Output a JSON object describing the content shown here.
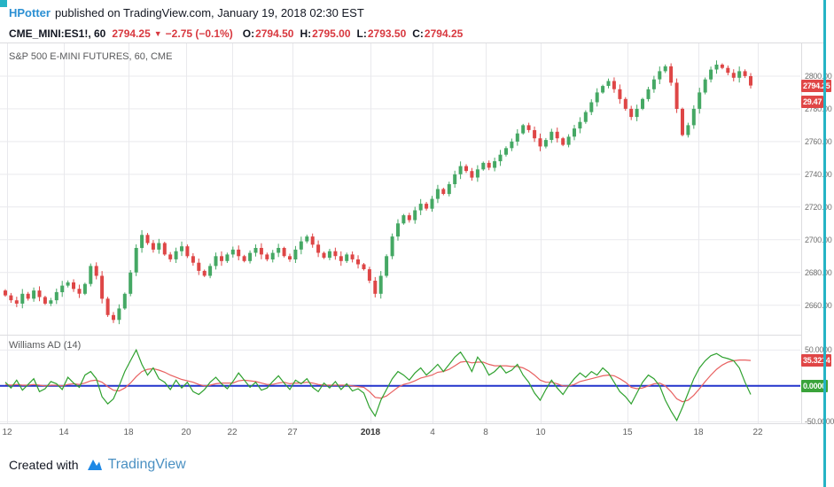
{
  "header": {
    "author": "HPotter",
    "published_text": "published on TradingView.com, January 19, 2018 02:30 EST"
  },
  "symbol_bar": {
    "symbol": "CME_MINI:ES1!, 60",
    "last": "2794.25",
    "direction": "▼",
    "change": "−2.75 (−0.1%)",
    "ohlc": [
      {
        "label": "O:",
        "value": "2794.50"
      },
      {
        "label": "H:",
        "value": "2795.00"
      },
      {
        "label": "L:",
        "value": "2793.50"
      },
      {
        "label": "C:",
        "value": "2794.25"
      }
    ]
  },
  "main_pane": {
    "title": "S&P 500 E-MINI FUTURES, 60, CME",
    "badges": [
      {
        "text": "2794.25",
        "value": 2794.25
      },
      {
        "text": "29.47",
        "value": 2784.3
      }
    ]
  },
  "indicator_pane": {
    "title": "Williams AD (14)",
    "badges": [
      {
        "text": "35.3214",
        "value": 35.3214,
        "color": "red"
      },
      {
        "text": "0.0000",
        "value": 0,
        "color": "green"
      }
    ]
  },
  "footer": {
    "created_with": "Created with",
    "brand": "TradingView"
  },
  "colors": {
    "accent_teal": "#25b3c5",
    "author_blue": "#2a8fd3",
    "text_dark": "#131722",
    "red": "#d8383f",
    "candle_up": "#45a864",
    "candle_down": "#de4646",
    "grid": "#e9e9ed",
    "axis_text": "#707070",
    "indicator_green": "#2fa12f",
    "indicator_red": "#e86060",
    "zero_line_blue": "#2233cc",
    "badge_red": "#e04646",
    "badge_green": "#3aa33a",
    "brand_blue": "#1e88e5",
    "brand_text": "#4a90c2"
  },
  "chart_data": {
    "type": "candlestick",
    "title": "S&P 500 E-MINI FUTURES, 60, CME",
    "symbol": "CME_MINI:ES1!",
    "interval_minutes": 60,
    "last_bar": {
      "open": 2794.5,
      "high": 2795.0,
      "low": 2793.5,
      "close": 2794.25,
      "change": -2.75,
      "change_pct": -0.1
    },
    "x_axis": {
      "labels": [
        {
          "text": "12",
          "x": 8
        },
        {
          "text": "14",
          "x": 72
        },
        {
          "text": "18",
          "x": 145
        },
        {
          "text": "20",
          "x": 210
        },
        {
          "text": "22",
          "x": 262
        },
        {
          "text": "27",
          "x": 330
        },
        {
          "text": "2018",
          "x": 418,
          "bold": true
        },
        {
          "text": "4",
          "x": 488
        },
        {
          "text": "8",
          "x": 548
        },
        {
          "text": "10",
          "x": 610
        },
        {
          "text": "15",
          "x": 708
        },
        {
          "text": "18",
          "x": 788
        },
        {
          "text": "22",
          "x": 855
        }
      ]
    },
    "price_axis": {
      "ylim": [
        2642,
        2820
      ],
      "ticks": [
        {
          "label": "2800.00",
          "value": 2800
        },
        {
          "label": "2780.00",
          "value": 2780
        },
        {
          "label": "2760.00",
          "value": 2760
        },
        {
          "label": "2740.00",
          "value": 2740
        },
        {
          "label": "2720.00",
          "value": 2720
        },
        {
          "label": "2700.00",
          "value": 2700
        },
        {
          "label": "2680.00",
          "value": 2680
        },
        {
          "label": "2660.00",
          "value": 2660
        }
      ]
    },
    "closes": [
      2666,
      2663,
      2661,
      2667,
      2664,
      2669,
      2665,
      2661,
      2663,
      2668,
      2672,
      2674,
      2670,
      2667,
      2673,
      2684,
      2678,
      2664,
      2654,
      2651,
      2658,
      2667,
      2680,
      2695,
      2703,
      2698,
      2694,
      2698,
      2691,
      2688,
      2693,
      2696,
      2690,
      2686,
      2681,
      2678,
      2684,
      2690,
      2687,
      2691,
      2694,
      2690,
      2687,
      2692,
      2695,
      2691,
      2688,
      2692,
      2695,
      2690,
      2688,
      2694,
      2699,
      2702,
      2697,
      2692,
      2689,
      2693,
      2690,
      2687,
      2691,
      2688,
      2685,
      2682,
      2675,
      2667,
      2678,
      2690,
      2702,
      2710,
      2715,
      2712,
      2718,
      2722,
      2719,
      2725,
      2731,
      2728,
      2734,
      2740,
      2745,
      2742,
      2738,
      2743,
      2747,
      2744,
      2748,
      2752,
      2756,
      2760,
      2765,
      2770,
      2767,
      2762,
      2757,
      2761,
      2766,
      2762,
      2758,
      2763,
      2768,
      2772,
      2778,
      2784,
      2790,
      2794,
      2797,
      2792,
      2786,
      2780,
      2775,
      2780,
      2786,
      2792,
      2798,
      2803,
      2806,
      2796,
      2780,
      2764,
      2770,
      2780,
      2790,
      2798,
      2804,
      2807,
      2805,
      2802,
      2799,
      2803,
      2800,
      2794.25
    ],
    "indicator": {
      "name": "Williams AD (14)",
      "ylim": [
        -52,
        70
      ],
      "zero_line": 0,
      "last_smoothing_value": 35.3214,
      "ticks": [
        {
          "label": "50.0000",
          "value": 50
        },
        {
          "label": "-50.0000",
          "value": -50
        }
      ],
      "green": [
        5,
        -3,
        8,
        -6,
        2,
        10,
        -8,
        -4,
        6,
        3,
        -5,
        12,
        4,
        -2,
        15,
        20,
        10,
        -15,
        -25,
        -18,
        0,
        20,
        35,
        50,
        30,
        15,
        25,
        10,
        5,
        -5,
        8,
        -3,
        5,
        -8,
        -12,
        -5,
        5,
        12,
        3,
        -4,
        6,
        18,
        8,
        -2,
        5,
        -6,
        -3,
        6,
        14,
        4,
        -5,
        8,
        3,
        10,
        -2,
        -8,
        4,
        -3,
        6,
        -5,
        3,
        -7,
        -4,
        -10,
        -30,
        -42,
        -20,
        -5,
        10,
        20,
        15,
        8,
        18,
        25,
        15,
        22,
        30,
        20,
        30,
        40,
        47,
        35,
        20,
        40,
        30,
        15,
        20,
        28,
        18,
        22,
        30,
        15,
        5,
        -10,
        -20,
        -5,
        8,
        -3,
        -12,
        0,
        10,
        18,
        12,
        20,
        15,
        25,
        18,
        5,
        -8,
        -15,
        -25,
        -10,
        5,
        15,
        10,
        0,
        -20,
        -35,
        -48,
        -30,
        -10,
        10,
        25,
        35,
        42,
        45,
        40,
        38,
        35,
        25,
        5,
        -12
      ],
      "red": [
        2,
        1,
        2,
        1,
        1,
        2,
        1,
        0,
        1,
        1,
        0,
        2,
        3,
        2,
        4,
        7,
        8,
        5,
        -1,
        -6,
        -7,
        -3,
        4,
        13,
        20,
        23,
        24,
        22,
        19,
        15,
        12,
        9,
        7,
        5,
        2,
        0,
        1,
        3,
        4,
        4,
        4,
        7,
        8,
        7,
        6,
        4,
        2,
        2,
        4,
        5,
        3,
        4,
        4,
        5,
        4,
        2,
        1,
        1,
        1,
        1,
        1,
        0,
        -1,
        -2,
        -8,
        -16,
        -17,
        -14,
        -8,
        -2,
        2,
        4,
        7,
        11,
        13,
        15,
        19,
        20,
        23,
        28,
        33,
        34,
        32,
        33,
        33,
        30,
        28,
        28,
        28,
        27,
        27,
        25,
        21,
        15,
        8,
        5,
        5,
        3,
        0,
        0,
        2,
        6,
        8,
        10,
        12,
        14,
        15,
        14,
        10,
        5,
        -2,
        -4,
        -3,
        0,
        3,
        4,
        0,
        -8,
        -18,
        -22,
        -20,
        -13,
        -4,
        6,
        15,
        23,
        29,
        33,
        35,
        36,
        36,
        35.32
      ]
    }
  }
}
